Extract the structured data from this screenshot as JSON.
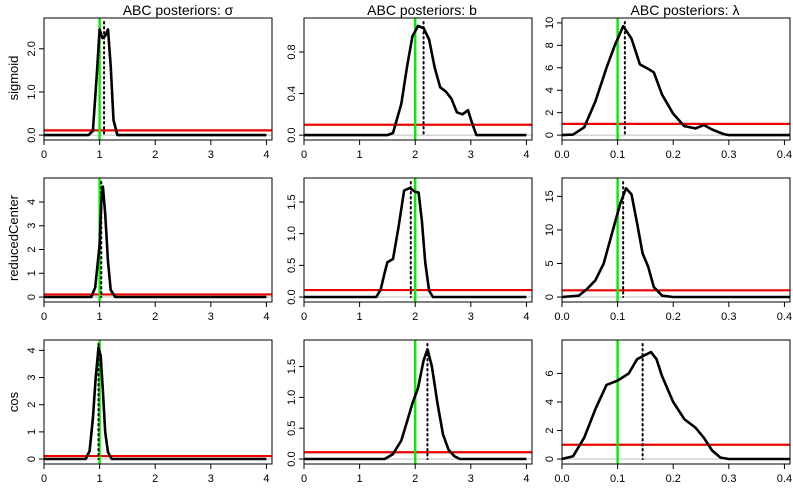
{
  "figure": {
    "row_labels": [
      "sigmoid",
      "reducedCenter",
      "cos"
    ],
    "col_titles": [
      "ABC posteriors: σ",
      "ABC posteriors: b",
      "ABC posteriors: λ"
    ]
  },
  "colors": {
    "density": "#000000",
    "true_value": "#00ee00",
    "prior": "#ee0000",
    "estimate": "#000000",
    "baseline": "#bebebe"
  },
  "chart_data": [
    {
      "type": "line",
      "row": 0,
      "col": 0,
      "title": "ABC posteriors: σ",
      "ylabel": "sigmoid",
      "xlim": [
        0,
        4.1
      ],
      "ylim": [
        0,
        2.6
      ],
      "x_ticks": [
        0,
        1,
        2,
        3,
        4
      ],
      "x_tick_labels": [
        "0",
        "1",
        "2",
        "3",
        "4"
      ],
      "y_ticks": [
        0,
        1,
        2
      ],
      "y_tick_labels": [
        "0.0",
        "1.0",
        "2.0"
      ],
      "true_value": 1,
      "posterior_estimate": 1.08,
      "prior_density": 0.11,
      "density": [
        [
          0,
          0
        ],
        [
          0.8,
          0
        ],
        [
          0.88,
          0.1
        ],
        [
          0.95,
          1.4
        ],
        [
          1.0,
          2.45
        ],
        [
          1.05,
          2.25
        ],
        [
          1.1,
          2.3
        ],
        [
          1.15,
          2.45
        ],
        [
          1.2,
          1.6
        ],
        [
          1.25,
          0.35
        ],
        [
          1.32,
          0
        ],
        [
          4,
          0
        ]
      ]
    },
    {
      "type": "line",
      "row": 0,
      "col": 1,
      "title": "ABC posteriors: b",
      "xlim": [
        0,
        4.1
      ],
      "ylim": [
        0,
        1.08
      ],
      "x_ticks": [
        0,
        1,
        2,
        3,
        4
      ],
      "x_tick_labels": [
        "0",
        "1",
        "2",
        "3",
        "4"
      ],
      "y_ticks": [
        0,
        0.4,
        0.8
      ],
      "y_tick_labels": [
        "0.0",
        "0.4",
        "0.8"
      ],
      "true_value": 2,
      "posterior_estimate": 2.15,
      "prior_density": 0.1,
      "density": [
        [
          0,
          0
        ],
        [
          1.5,
          0
        ],
        [
          1.6,
          0.02
        ],
        [
          1.75,
          0.3
        ],
        [
          1.85,
          0.65
        ],
        [
          1.95,
          0.95
        ],
        [
          2.05,
          1.05
        ],
        [
          2.15,
          1.03
        ],
        [
          2.25,
          0.92
        ],
        [
          2.35,
          0.65
        ],
        [
          2.45,
          0.46
        ],
        [
          2.55,
          0.42
        ],
        [
          2.65,
          0.35
        ],
        [
          2.75,
          0.22
        ],
        [
          2.85,
          0.2
        ],
        [
          2.95,
          0.24
        ],
        [
          3.02,
          0.12
        ],
        [
          3.1,
          0
        ],
        [
          4,
          0
        ]
      ]
    },
    {
      "type": "line",
      "row": 0,
      "col": 2,
      "title": "ABC posteriors: λ",
      "xlim": [
        0,
        0.41
      ],
      "ylim": [
        0,
        10
      ],
      "x_ticks": [
        0,
        0.1,
        0.2,
        0.3,
        0.4
      ],
      "x_tick_labels": [
        "0.0",
        "0.1",
        "0.2",
        "0.3",
        "0.4"
      ],
      "y_ticks": [
        0,
        2,
        4,
        6,
        8,
        10
      ],
      "y_tick_labels": [
        "0",
        "2",
        "4",
        "6",
        "8",
        "10"
      ],
      "true_value": 0.1,
      "posterior_estimate": 0.113,
      "prior_density": 1.0,
      "density": [
        [
          0,
          0
        ],
        [
          0.02,
          0.05
        ],
        [
          0.04,
          0.7
        ],
        [
          0.06,
          3.0
        ],
        [
          0.08,
          6.0
        ],
        [
          0.095,
          8.0
        ],
        [
          0.11,
          9.7
        ],
        [
          0.125,
          8.6
        ],
        [
          0.14,
          6.3
        ],
        [
          0.155,
          5.9
        ],
        [
          0.165,
          5.6
        ],
        [
          0.18,
          3.6
        ],
        [
          0.2,
          1.9
        ],
        [
          0.22,
          0.8
        ],
        [
          0.24,
          0.6
        ],
        [
          0.255,
          0.9
        ],
        [
          0.27,
          0.5
        ],
        [
          0.29,
          0.1
        ],
        [
          0.3,
          0
        ],
        [
          0.41,
          0
        ]
      ]
    },
    {
      "type": "line",
      "row": 1,
      "col": 0,
      "ylabel": "reducedCenter",
      "xlim": [
        0,
        4.1
      ],
      "ylim": [
        0,
        4.8
      ],
      "x_ticks": [
        0,
        1,
        2,
        3,
        4
      ],
      "x_tick_labels": [
        "0",
        "1",
        "2",
        "3",
        "4"
      ],
      "y_ticks": [
        0,
        1,
        2,
        3,
        4
      ],
      "y_tick_labels": [
        "0",
        "1",
        "2",
        "3",
        "4"
      ],
      "true_value": 1,
      "posterior_estimate": 1.03,
      "prior_density": 0.11,
      "density": [
        [
          0,
          0
        ],
        [
          0.85,
          0
        ],
        [
          0.92,
          0.4
        ],
        [
          0.97,
          1.5
        ],
        [
          1.0,
          2.2
        ],
        [
          1.03,
          4.0
        ],
        [
          1.06,
          4.65
        ],
        [
          1.1,
          3.5
        ],
        [
          1.15,
          1.5
        ],
        [
          1.2,
          0.3
        ],
        [
          1.28,
          0
        ],
        [
          4,
          0
        ]
      ]
    },
    {
      "type": "line",
      "row": 1,
      "col": 1,
      "xlim": [
        0,
        4.1
      ],
      "ylim": [
        0,
        1.8
      ],
      "x_ticks": [
        0,
        1,
        2,
        3,
        4
      ],
      "x_tick_labels": [
        "0",
        "1",
        "2",
        "3",
        "4"
      ],
      "y_ticks": [
        0,
        0.5,
        1.0,
        1.5
      ],
      "y_tick_labels": [
        "0.0",
        "0.5",
        "1.0",
        "1.5"
      ],
      "true_value": 2,
      "posterior_estimate": 1.92,
      "prior_density": 0.11,
      "density": [
        [
          0,
          0
        ],
        [
          1.3,
          0
        ],
        [
          1.38,
          0.12
        ],
        [
          1.45,
          0.38
        ],
        [
          1.5,
          0.55
        ],
        [
          1.6,
          0.6
        ],
        [
          1.7,
          1.1
        ],
        [
          1.8,
          1.68
        ],
        [
          1.9,
          1.72
        ],
        [
          2.0,
          1.66
        ],
        [
          2.06,
          1.65
        ],
        [
          2.12,
          1.2
        ],
        [
          2.18,
          0.55
        ],
        [
          2.25,
          0.1
        ],
        [
          2.32,
          0
        ],
        [
          4,
          0
        ]
      ]
    },
    {
      "type": "line",
      "row": 1,
      "col": 2,
      "xlim": [
        0,
        0.41
      ],
      "ylim": [
        0,
        17
      ],
      "x_ticks": [
        0,
        0.1,
        0.2,
        0.3,
        0.4
      ],
      "x_tick_labels": [
        "0.0",
        "0.1",
        "0.2",
        "0.3",
        "0.4"
      ],
      "y_ticks": [
        0,
        5,
        10,
        15
      ],
      "y_tick_labels": [
        "0",
        "5",
        "10",
        "15"
      ],
      "true_value": 0.1,
      "posterior_estimate": 0.11,
      "prior_density": 1.0,
      "density": [
        [
          0,
          0
        ],
        [
          0.03,
          0.2
        ],
        [
          0.045,
          1.2
        ],
        [
          0.06,
          2.5
        ],
        [
          0.075,
          5.0
        ],
        [
          0.09,
          9.5
        ],
        [
          0.105,
          14.0
        ],
        [
          0.115,
          16.2
        ],
        [
          0.125,
          15.3
        ],
        [
          0.135,
          11.0
        ],
        [
          0.145,
          6.5
        ],
        [
          0.155,
          4.5
        ],
        [
          0.165,
          1.5
        ],
        [
          0.18,
          0.2
        ],
        [
          0.2,
          0
        ],
        [
          0.41,
          0
        ]
      ]
    },
    {
      "type": "line",
      "row": 2,
      "col": 0,
      "ylabel": "cos",
      "xlim": [
        0,
        4.1
      ],
      "ylim": [
        0,
        4.2
      ],
      "x_ticks": [
        0,
        1,
        2,
        3,
        4
      ],
      "x_tick_labels": [
        "0",
        "1",
        "2",
        "3",
        "4"
      ],
      "y_ticks": [
        0,
        1,
        2,
        3,
        4
      ],
      "y_tick_labels": [
        "0",
        "1",
        "2",
        "3",
        "4"
      ],
      "true_value": 1,
      "posterior_estimate": 0.98,
      "prior_density": 0.11,
      "density": [
        [
          0,
          0
        ],
        [
          0.75,
          0
        ],
        [
          0.82,
          0.3
        ],
        [
          0.88,
          1.5
        ],
        [
          0.93,
          3.0
        ],
        [
          0.98,
          4.1
        ],
        [
          1.02,
          3.8
        ],
        [
          1.06,
          2.5
        ],
        [
          1.1,
          1.0
        ],
        [
          1.15,
          0.25
        ],
        [
          1.22,
          0
        ],
        [
          4,
          0
        ]
      ]
    },
    {
      "type": "line",
      "row": 2,
      "col": 1,
      "xlim": [
        0,
        4.1
      ],
      "ylim": [
        0,
        1.85
      ],
      "x_ticks": [
        0,
        1,
        2,
        3,
        4
      ],
      "x_tick_labels": [
        "0",
        "1",
        "2",
        "3",
        "4"
      ],
      "y_ticks": [
        0,
        0.5,
        1.0,
        1.5
      ],
      "y_tick_labels": [
        "0.0",
        "0.5",
        "1.0",
        "1.5"
      ],
      "true_value": 2,
      "posterior_estimate": 2.22,
      "prior_density": 0.11,
      "density": [
        [
          0,
          0
        ],
        [
          1.45,
          0
        ],
        [
          1.6,
          0.08
        ],
        [
          1.75,
          0.3
        ],
        [
          1.85,
          0.6
        ],
        [
          1.95,
          0.9
        ],
        [
          2.05,
          1.15
        ],
        [
          2.15,
          1.6
        ],
        [
          2.22,
          1.78
        ],
        [
          2.3,
          1.5
        ],
        [
          2.4,
          0.9
        ],
        [
          2.5,
          0.4
        ],
        [
          2.6,
          0.15
        ],
        [
          2.7,
          0.05
        ],
        [
          2.8,
          0
        ],
        [
          4,
          0
        ]
      ]
    },
    {
      "type": "line",
      "row": 2,
      "col": 2,
      "xlim": [
        0,
        0.41
      ],
      "ylim": [
        0,
        8
      ],
      "x_ticks": [
        0,
        0.1,
        0.2,
        0.3,
        0.4
      ],
      "x_tick_labels": [
        "0.0",
        "0.1",
        "0.2",
        "0.3",
        "0.4"
      ],
      "y_ticks": [
        0,
        2,
        4,
        6
      ],
      "y_tick_labels": [
        "0",
        "2",
        "4",
        "6"
      ],
      "true_value": 0.1,
      "posterior_estimate": 0.145,
      "prior_density": 1.0,
      "density": [
        [
          0,
          0
        ],
        [
          0.02,
          0.2
        ],
        [
          0.04,
          1.5
        ],
        [
          0.06,
          3.5
        ],
        [
          0.08,
          5.2
        ],
        [
          0.1,
          5.5
        ],
        [
          0.12,
          6.0
        ],
        [
          0.135,
          7.0
        ],
        [
          0.15,
          7.3
        ],
        [
          0.16,
          7.5
        ],
        [
          0.17,
          7.0
        ],
        [
          0.18,
          5.8
        ],
        [
          0.2,
          4.0
        ],
        [
          0.22,
          2.8
        ],
        [
          0.24,
          2.2
        ],
        [
          0.255,
          1.5
        ],
        [
          0.27,
          0.6
        ],
        [
          0.285,
          0.1
        ],
        [
          0.3,
          0
        ],
        [
          0.41,
          0
        ]
      ]
    }
  ]
}
